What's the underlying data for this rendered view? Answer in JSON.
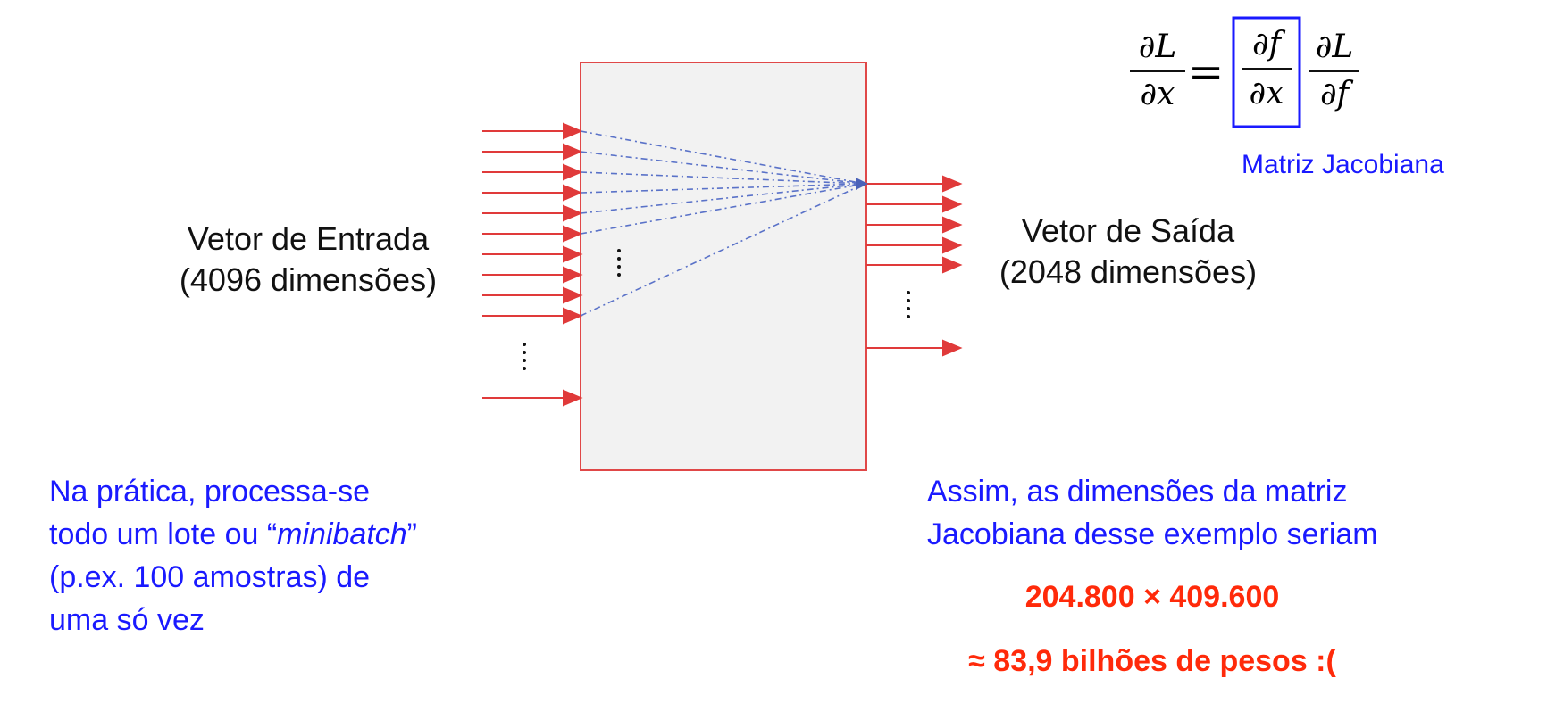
{
  "diagram": {
    "input_label": "Vetor de Entrada",
    "input_dims": "(4096 dimensões)",
    "output_label": "Vetor de Saída",
    "output_dims": "(2048 dimensões)",
    "equation": {
      "lhs_num": "∂L",
      "lhs_den": "∂x",
      "equals": "=",
      "boxed_num": "∂f",
      "boxed_den": "∂x",
      "rhs_num": "∂L",
      "rhs_den": "∂f"
    },
    "jacobian_label": "Matriz Jacobiana",
    "note_left": {
      "line1": "Na prática, processa-se",
      "line2_pre": "todo um lote ou “",
      "line2_em": "minibatch",
      "line2_post": "”",
      "line3": "(p.ex. 100 amostras) de",
      "line4": "uma só vez"
    },
    "note_right": {
      "line1": "Assim, as dimensões da matriz",
      "line2": "Jacobiana desse exemplo seriam"
    },
    "result_dims": "204.800 × 409.600",
    "result_weights": "≈ 83,9 bilhões de pesos :("
  },
  "colors": {
    "arrow": "#e03a3a",
    "box_border": "#e04848",
    "box_fill": "#f2f2f2",
    "dash_line": "#5a72c8",
    "blue_text": "#1a1aff",
    "red_text": "#ff2a0a"
  }
}
